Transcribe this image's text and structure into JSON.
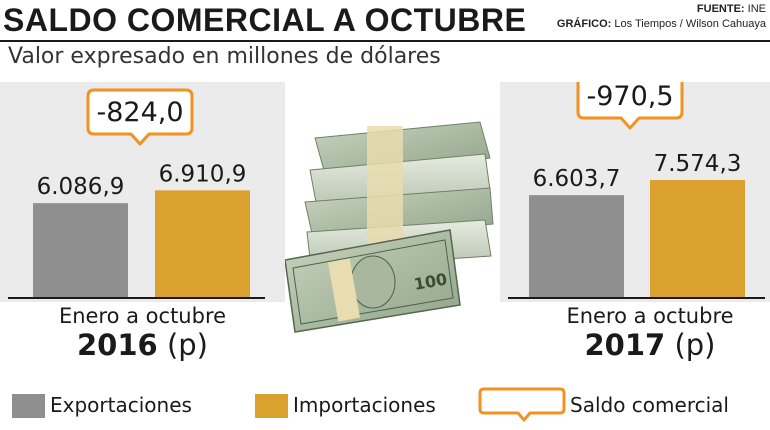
{
  "header": {
    "title": "SALDO COMERCIAL A OCTUBRE",
    "subtitle": "Valor expresado en millones de dólares",
    "source_label": "FUENTE:",
    "source_value": "INE",
    "graphic_label": "GRÁFICO:",
    "graphic_value": "Los Tiempos / Wilson Cahuaya"
  },
  "colors": {
    "exportaciones": "#8f8f90",
    "importaciones": "#dba12f",
    "saldo_border": "#f29223",
    "panel": "#ebebeb"
  },
  "chart_data": [
    {
      "type": "bar",
      "period_label": "Enero a octubre",
      "year": "2016",
      "year_suffix": "(p)",
      "categories": [
        "Exportaciones",
        "Importaciones"
      ],
      "values": [
        6086.9,
        6910.9
      ],
      "value_labels": [
        "6.086,9",
        "6.910,9"
      ],
      "saldo_comercial": -824.0,
      "saldo_label": "-824,0",
      "ylim": [
        0,
        8000
      ]
    },
    {
      "type": "bar",
      "period_label": "Enero a octubre",
      "year": "2017",
      "year_suffix": "(p)",
      "categories": [
        "Exportaciones",
        "Importaciones"
      ],
      "values": [
        6603.7,
        7574.3
      ],
      "value_labels": [
        "6.603,7",
        "7.574,3"
      ],
      "saldo_comercial": -970.5,
      "saldo_label": "-970,5",
      "ylim": [
        0,
        8000
      ]
    }
  ],
  "legend": [
    {
      "label": "Exportaciones",
      "icon": "gray-swatch"
    },
    {
      "label": "Importaciones",
      "icon": "gold-swatch"
    },
    {
      "label": "Saldo comercial",
      "icon": "callout-box-icon"
    }
  ],
  "illustration": {
    "icon": "money-stack-icon",
    "note_value": "100"
  }
}
